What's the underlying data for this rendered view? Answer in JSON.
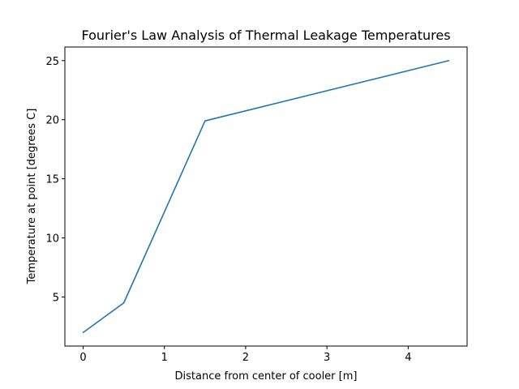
{
  "chart_data": {
    "type": "line",
    "title": "Fourier's Law Analysis of Thermal Leakage Temperatures",
    "xlabel": "Distance from center of cooler [m]",
    "ylabel": "Temperature at point [degrees C]",
    "xlim": [
      -0.225,
      4.725
    ],
    "ylim": [
      0.85,
      26.15
    ],
    "xticks": [
      0,
      1,
      2,
      3,
      4
    ],
    "yticks": [
      5,
      10,
      15,
      20,
      25
    ],
    "grid": false,
    "series": [
      {
        "color": "#1f77b4",
        "x": [
          0,
          0.5,
          1.5,
          4.5
        ],
        "y": [
          2.0,
          4.5,
          19.9,
          25.0
        ]
      }
    ]
  }
}
